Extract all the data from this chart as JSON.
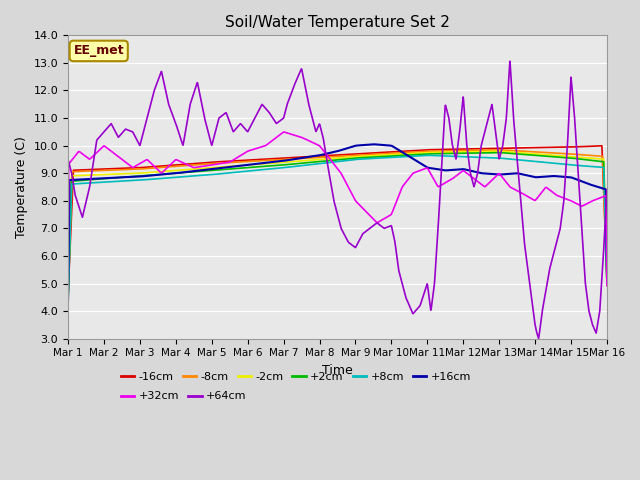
{
  "title": "Soil/Water Temperature Set 2",
  "xlabel": "Time",
  "ylabel": "Temperature (C)",
  "ylim": [
    3.0,
    14.0
  ],
  "yticks": [
    3.0,
    4.0,
    5.0,
    6.0,
    7.0,
    8.0,
    9.0,
    10.0,
    11.0,
    12.0,
    13.0,
    14.0
  ],
  "xtick_labels": [
    "Mar 1",
    "Mar 2",
    "Mar 3",
    "Mar 4",
    "Mar 5",
    "Mar 6",
    "Mar 7",
    "Mar 8",
    "Mar 9",
    "Mar 10",
    "Mar 11",
    "Mar 12",
    "Mar 13",
    "Mar 14",
    "Mar 15",
    "Mar 16"
  ],
  "series_order": [
    "-16cm",
    "-8cm",
    "-2cm",
    "+2cm",
    "+8cm",
    "+16cm",
    "+32cm",
    "+64cm"
  ],
  "series": {
    "-16cm": {
      "color": "#dd0000",
      "lw": 1.2
    },
    "-8cm": {
      "color": "#ff8800",
      "lw": 1.2
    },
    "-2cm": {
      "color": "#eeee00",
      "lw": 1.2
    },
    "+2cm": {
      "color": "#00bb00",
      "lw": 1.2
    },
    "+8cm": {
      "color": "#00bbbb",
      "lw": 1.2
    },
    "+16cm": {
      "color": "#0000aa",
      "lw": 1.5
    },
    "+32cm": {
      "color": "#ee00ee",
      "lw": 1.2
    },
    "+64cm": {
      "color": "#9900cc",
      "lw": 1.2
    }
  },
  "fig_bg_color": "#d8d8d8",
  "plot_bg_color": "#e8e8e8",
  "grid_color": "#ffffff",
  "label_box_text": "EE_met",
  "label_box_facecolor": "#ffffaa",
  "label_box_edgecolor": "#aa8800",
  "legend_ncol_row1": 6,
  "legend_ncol_row2": 2
}
